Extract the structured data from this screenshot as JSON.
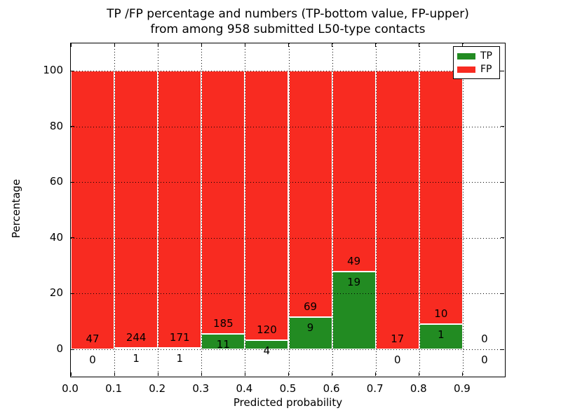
{
  "title": {
    "line1": "TP /FP percentage and numbers (TP-bottom value, FP-upper)",
    "line2": "from among 958 submitted L50-type contacts"
  },
  "axes": {
    "xlabel": "Predicted probability",
    "ylabel": "Percentage"
  },
  "legend": {
    "items": [
      {
        "label": "TP",
        "series": "tp"
      },
      {
        "label": "FP",
        "series": "fp"
      }
    ]
  },
  "colors": {
    "tp": "#228B22",
    "fp": "#F82B21",
    "grid": "#000000",
    "bar_edge": "#FFFFFF",
    "background": "#FFFFFF"
  },
  "chart_data": {
    "type": "bar",
    "stacked": true,
    "normalized": "each bin stacked to 100% of bin total; labels show raw counts (TP bottom, FP upper)",
    "title": "TP /FP percentage and numbers (TP-bottom value, FP-upper) from among 958 submitted L50-type contacts",
    "xlabel": "Predicted probability",
    "ylabel": "Percentage",
    "total_submitted": 958,
    "grid": true,
    "legend_position": "upper right",
    "xlim": [
      0.0,
      1.0
    ],
    "ylim": [
      -10.5,
      110.5
    ],
    "bin_width": 0.1,
    "bin_starts": [
      0.0,
      0.1,
      0.2,
      0.3,
      0.4,
      0.5,
      0.6,
      0.7,
      0.8,
      0.9
    ],
    "x_tick_labels": [
      "0.0",
      "0.1",
      "0.2",
      "0.3",
      "0.4",
      "0.5",
      "0.6",
      "0.7",
      "0.8",
      "0.9"
    ],
    "y_tick_labels": [
      "0",
      "20",
      "40",
      "60",
      "80",
      "100"
    ],
    "series": [
      {
        "name": "TP",
        "color": "#228B22",
        "counts": [
          0,
          1,
          1,
          11,
          4,
          9,
          19,
          0,
          1,
          0
        ]
      },
      {
        "name": "FP",
        "color": "#F82B21",
        "counts": [
          47,
          244,
          171,
          185,
          120,
          69,
          49,
          17,
          10,
          0
        ]
      }
    ]
  }
}
